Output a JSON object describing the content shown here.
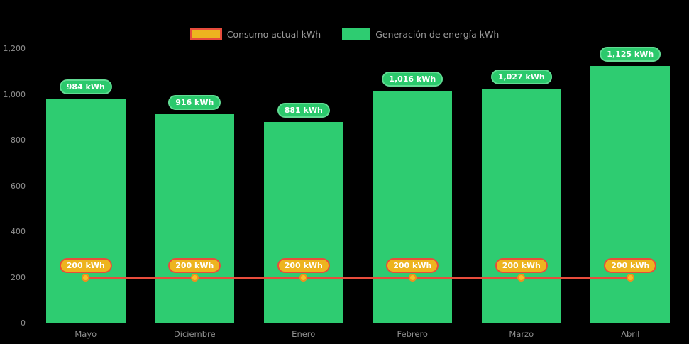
{
  "chart_data": {
    "type": "bar",
    "title": "",
    "background": "#000000",
    "grid": false,
    "legend_position": "top",
    "text_color": "#8f8f8f",
    "legend_text_color": "#9a9a9a",
    "categories": [
      "Mayo",
      "Diciembre",
      "Enero",
      "Febrero",
      "Marzo",
      "Abril"
    ],
    "series": [
      {
        "name": "Consumo actual kWh",
        "type": "line",
        "values": [
          200,
          200,
          200,
          200,
          200,
          200
        ],
        "point_labels": [
          "200 kWh",
          "200 kWh",
          "200 kWh",
          "200 kWh",
          "200 kWh",
          "200 kWh"
        ],
        "line_color": "#e74c3c",
        "marker_fill": "#f6c026",
        "marker_border": "#ee8f1f",
        "label_fill": "#edb41f",
        "label_border": "#e74c3c"
      },
      {
        "name": "Generación de energía kWh",
        "type": "bar",
        "values": [
          984,
          916,
          881,
          1016,
          1027,
          1125
        ],
        "point_labels": [
          "984 kWh",
          "916 kWh",
          "881 kWh",
          "1,016 kWh",
          "1,027 kWh",
          "1,125 kWh"
        ],
        "bar_color": "#2ecc71",
        "label_fill": "#2bc96c",
        "label_border": "#61db93"
      }
    ],
    "y_axis": {
      "min": 0,
      "max": 1200,
      "tick_step": 200,
      "tick_labels": [
        "0",
        "200",
        "400",
        "600",
        "800",
        "1,000",
        "1,200"
      ]
    },
    "x_axis": {
      "labels": [
        "Mayo",
        "Diciembre",
        "Enero",
        "Febrero",
        "Marzo",
        "Abril"
      ]
    }
  }
}
